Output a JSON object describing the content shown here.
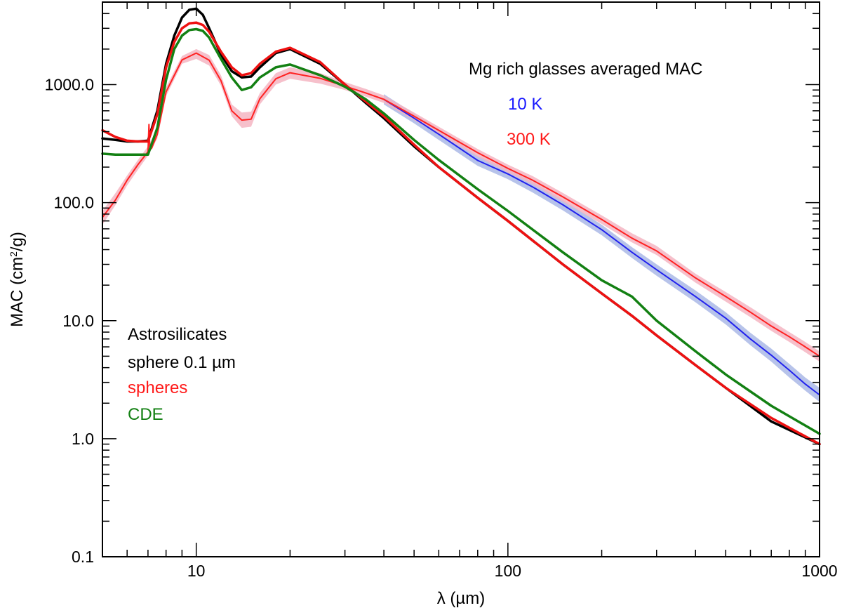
{
  "chart_data": {
    "type": "line",
    "xscale": "log",
    "yscale": "log",
    "xlim": [
      5,
      1000
    ],
    "ylim": [
      0.1,
      5000
    ],
    "xlabel": "λ (µm)",
    "ylabel_prefix": "MAC (cm",
    "ylabel_sup": "2",
    "ylabel_suffix": "/g)",
    "x_tick_labels": [
      {
        "value": 10,
        "label": "10"
      },
      {
        "value": 100,
        "label": "100"
      },
      {
        "value": 1000,
        "label": "1000"
      }
    ],
    "y_tick_labels": [
      {
        "value": 0.1,
        "label": "0.1"
      },
      {
        "value": 1,
        "label": "1.0"
      },
      {
        "value": 10,
        "label": "10.0"
      },
      {
        "value": 100,
        "label": "100.0"
      },
      {
        "value": 1000,
        "label": "1000.0"
      }
    ],
    "annotations": {
      "group_title": "Mg rich glasses averaged MAC",
      "legend_10k": {
        "text": "10 K",
        "color": "#1a1aff"
      },
      "legend_300k": {
        "text": "300 K",
        "color": "#ff1a1a"
      },
      "astro_line1": "Astrosilicates",
      "astro_line2": "sphere 0.1 µm",
      "astro_spheres": {
        "text": "spheres",
        "color": "#ff1a1a"
      },
      "astro_cde": {
        "text": "CDE",
        "color": "#138013"
      }
    },
    "series": [
      {
        "name": "10 K band",
        "kind": "band",
        "color": "#aab8e6",
        "x": [
          40,
          50,
          60,
          80,
          100,
          120,
          150,
          200,
          250,
          300,
          400,
          500,
          600,
          700,
          800,
          900,
          1000
        ],
        "lower": [
          680,
          470,
          340,
          205,
          158,
          122,
          86,
          53,
          34,
          24,
          14.3,
          9.3,
          6.2,
          4.5,
          3.3,
          2.55,
          2.05
        ],
        "upper": [
          830,
          570,
          420,
          250,
          193,
          150,
          106,
          65,
          42,
          30,
          18,
          11.8,
          7.9,
          5.8,
          4.3,
          3.3,
          2.7
        ]
      },
      {
        "name": "300 K band",
        "kind": "band",
        "color": "#f4b5c2",
        "x": [
          5,
          5.5,
          6,
          6.5,
          7,
          7.5,
          8,
          9,
          10,
          11,
          12,
          13,
          14,
          15,
          16,
          18,
          20,
          25,
          30,
          35,
          40,
          50,
          60,
          80,
          100,
          120,
          150,
          200,
          250,
          300,
          400,
          500,
          600,
          700,
          800,
          900,
          1000
        ],
        "lower": [
          65,
          95,
          140,
          190,
          250,
          350,
          800,
          1500,
          1650,
          1450,
          980,
          540,
          430,
          440,
          680,
          1000,
          1120,
          1020,
          900,
          790,
          700,
          500,
          380,
          245,
          180,
          143,
          102,
          66,
          46,
          36,
          21,
          14.5,
          10.7,
          8.2,
          6.6,
          5.4,
          4.5
        ],
        "upper": [
          85,
          120,
          170,
          230,
          300,
          420,
          950,
          1750,
          2000,
          1780,
          1200,
          680,
          580,
          590,
          850,
          1250,
          1400,
          1250,
          1050,
          920,
          810,
          580,
          440,
          285,
          210,
          168,
          121,
          78,
          55,
          43,
          25,
          17.5,
          13,
          10,
          8,
          6.6,
          5.5
        ]
      },
      {
        "name": "Astrosilicates sphere 0.1 µm",
        "kind": "line",
        "color": "#000000",
        "x": [
          5,
          5.5,
          6,
          6.5,
          7,
          7.5,
          8,
          8.5,
          9,
          9.5,
          10,
          10.5,
          11,
          12,
          13,
          14,
          15,
          16,
          18,
          20,
          25,
          30,
          35,
          40,
          50,
          60,
          80,
          100,
          150,
          200,
          250,
          300,
          400,
          500,
          700,
          1000
        ],
        "y": [
          350,
          340,
          330,
          330,
          335,
          600,
          1500,
          2600,
          3700,
          4300,
          4400,
          3900,
          3000,
          1800,
          1300,
          1150,
          1170,
          1400,
          1850,
          2000,
          1500,
          1000,
          700,
          520,
          300,
          200,
          110,
          70,
          30,
          17,
          11,
          7.5,
          4.2,
          2.7,
          1.4,
          0.9
        ]
      },
      {
        "name": "10 K",
        "kind": "line",
        "color": "#2222ee",
        "x": [
          40,
          50,
          60,
          80,
          100,
          120,
          150,
          200,
          250,
          300,
          400,
          500,
          600,
          700,
          800,
          900,
          1000
        ],
        "y": [
          750,
          520,
          380,
          228,
          175,
          136,
          96,
          59,
          38,
          27,
          16,
          10.5,
          7,
          5.1,
          3.8,
          2.9,
          2.35
        ]
      },
      {
        "name": "300 K",
        "kind": "line",
        "color": "#ff2222",
        "x": [
          5,
          5.5,
          6,
          6.5,
          7,
          7.05,
          7.1,
          7.2,
          7.5,
          8,
          9,
          10,
          11,
          12,
          13,
          14,
          15,
          16,
          18,
          20,
          25,
          30,
          35,
          40,
          50,
          60,
          80,
          100,
          120,
          150,
          200,
          250,
          300,
          400,
          500,
          600,
          700,
          800,
          900,
          1000
        ],
        "y": [
          75,
          105,
          155,
          210,
          270,
          460,
          280,
          290,
          380,
          870,
          1620,
          1850,
          1610,
          1080,
          600,
          500,
          510,
          760,
          1120,
          1260,
          1130,
          970,
          850,
          750,
          540,
          410,
          265,
          195,
          155,
          112,
          72,
          50,
          39,
          23,
          16,
          11.8,
          9,
          7.3,
          6,
          5
        ]
      },
      {
        "name": "spheres",
        "kind": "line",
        "color": "#ee1111",
        "x": [
          5,
          5.5,
          6,
          6.5,
          7,
          7.5,
          8,
          8.5,
          9,
          9.5,
          10,
          10.5,
          11,
          12,
          13,
          14,
          15,
          16,
          18,
          20,
          25,
          30,
          35,
          40,
          50,
          60,
          80,
          100,
          150,
          200,
          250,
          300,
          400,
          500,
          700,
          1000
        ],
        "y": [
          410,
          360,
          335,
          330,
          330,
          560,
          1400,
          2300,
          3000,
          3300,
          3350,
          3200,
          2800,
          1900,
          1400,
          1200,
          1250,
          1500,
          1900,
          2050,
          1550,
          1000,
          720,
          540,
          310,
          200,
          110,
          70,
          30,
          17,
          11,
          7.5,
          4.2,
          2.7,
          1.5,
          0.9
        ]
      },
      {
        "name": "CDE",
        "kind": "line",
        "color": "#138013",
        "x": [
          5,
          5.5,
          6,
          6.5,
          7,
          7.5,
          8,
          8.5,
          9,
          9.5,
          10,
          10.5,
          11,
          12,
          13,
          14,
          15,
          16,
          18,
          20,
          25,
          30,
          35,
          40,
          50,
          60,
          80,
          100,
          150,
          200,
          250,
          300,
          400,
          500,
          700,
          1000
        ],
        "y": [
          260,
          255,
          255,
          255,
          255,
          430,
          1100,
          2000,
          2600,
          2900,
          2950,
          2850,
          2500,
          1650,
          1150,
          900,
          950,
          1150,
          1400,
          1480,
          1200,
          960,
          750,
          570,
          340,
          230,
          130,
          85,
          38,
          22,
          16,
          10,
          5.5,
          3.5,
          1.9,
          1.1
        ]
      }
    ]
  }
}
